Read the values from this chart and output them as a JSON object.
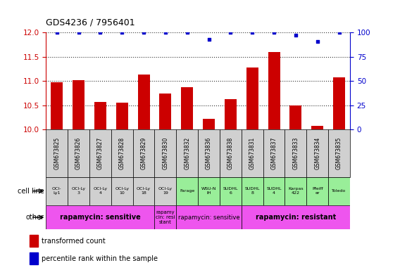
{
  "title": "GDS4236 / 7956401",
  "samples": [
    "GSM673825",
    "GSM673826",
    "GSM673827",
    "GSM673828",
    "GSM673829",
    "GSM673830",
    "GSM673832",
    "GSM673836",
    "GSM673838",
    "GSM673831",
    "GSM673837",
    "GSM673833",
    "GSM673834",
    "GSM673835"
  ],
  "bar_values": [
    10.98,
    11.02,
    10.57,
    10.55,
    11.13,
    10.74,
    10.87,
    10.22,
    10.63,
    11.28,
    11.6,
    10.5,
    10.08,
    11.08
  ],
  "percentile_values": [
    100,
    100,
    100,
    100,
    100,
    100,
    100,
    93,
    100,
    100,
    100,
    97,
    91,
    100
  ],
  "ylim_left": [
    10,
    12
  ],
  "ylim_right": [
    0,
    100
  ],
  "yticks_left": [
    10,
    10.5,
    11,
    11.5,
    12
  ],
  "yticks_right": [
    0,
    25,
    50,
    75,
    100
  ],
  "bar_color": "#cc0000",
  "dot_color": "#0000cc",
  "cell_lines": [
    "OCI-\nLy1",
    "OCI-Ly\n3",
    "OCI-Ly\n4",
    "OCI-Ly\n10",
    "OCI-Ly\n18",
    "OCI-Ly\n19",
    "Farage",
    "WSU-N\nIH",
    "SUDHL\n6",
    "SUDHL\n8",
    "SUDHL\n4",
    "Karpas\n422",
    "Pfeiff\ner",
    "Toledo"
  ],
  "cell_line_bg_gray": "#d0d0d0",
  "cell_line_bg_green": "#99ee99",
  "cell_line_gray_count": 6,
  "other_rects": [
    {
      "label": "rapamycin: sensitive",
      "start": 0,
      "end": 4,
      "color": "#ee55ee",
      "fontsize": 7,
      "bold": true
    },
    {
      "label": "rapamy\ncin: resi\nstant",
      "start": 5,
      "end": 5,
      "color": "#ee55ee",
      "fontsize": 5,
      "bold": false
    },
    {
      "label": "rapamycin: sensitive",
      "start": 6,
      "end": 8,
      "color": "#ee55ee",
      "fontsize": 6,
      "bold": false
    },
    {
      "label": "rapamycin: resistant",
      "start": 9,
      "end": 13,
      "color": "#ee55ee",
      "fontsize": 7,
      "bold": true
    }
  ],
  "axis_left_color": "#cc0000",
  "axis_right_color": "#0000cc",
  "grid_style": ":",
  "grid_color": "#333333",
  "grid_linewidth": 0.8
}
